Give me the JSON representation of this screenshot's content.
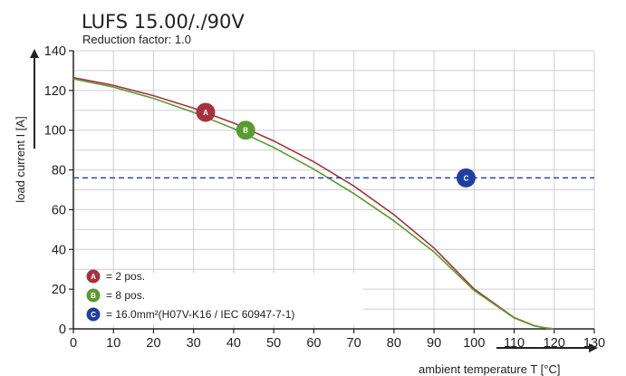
{
  "chart_data": {
    "type": "line",
    "title": "LUFS 15.00/./90V",
    "subtitle": "Reduction factor: 1.0",
    "xlabel": "ambient temperature T [°C]",
    "ylabel": "load current I [A]",
    "xlim": [
      0,
      130
    ],
    "ylim": [
      0,
      140
    ],
    "xticks": [
      "0",
      "10",
      "20",
      "30",
      "40",
      "50",
      "60",
      "70",
      "80",
      "90",
      "100",
      "110",
      "120",
      "130"
    ],
    "yticks": [
      "0",
      "20",
      "40",
      "60",
      "80",
      "100",
      "120",
      "140"
    ],
    "grid": true,
    "legend_position": "bottom-left",
    "series": [
      {
        "marker": "A",
        "color": "#a3343d",
        "x": [
          0,
          10,
          20,
          30,
          40,
          50,
          60,
          70,
          80,
          90,
          100,
          110,
          115,
          118,
          120
        ],
        "y": [
          126.5,
          122.6,
          117.4,
          111.1,
          103.6,
          94.6,
          84.1,
          71.9,
          57.5,
          40.7,
          20.1,
          5.7,
          1.6,
          0.4,
          0
        ]
      },
      {
        "marker": "B",
        "color": "#5a9a33",
        "x": [
          0,
          10,
          20,
          30,
          40,
          50,
          60,
          70,
          80,
          90,
          100,
          110,
          115,
          118,
          120
        ],
        "y": [
          125.8,
          121.7,
          116.0,
          109.0,
          100.8,
          91.3,
          80.4,
          68.1,
          54.4,
          38.7,
          19.4,
          5.5,
          1.5,
          0.4,
          0
        ]
      },
      {
        "marker": "C",
        "color": "#1f3f9f",
        "style": "dashed",
        "x": [
          0,
          130
        ],
        "y": [
          76,
          76
        ]
      }
    ],
    "markers": [
      {
        "letter": "A",
        "x": 33,
        "y": 109,
        "color": "#a3343d"
      },
      {
        "letter": "B",
        "x": 43,
        "y": 100,
        "color": "#5a9a33"
      },
      {
        "letter": "C",
        "x": 98,
        "y": 76,
        "color": "#1f3f9f"
      }
    ],
    "legend": [
      {
        "letter": "A",
        "text": "= 2 pos.",
        "color": "#a3343d"
      },
      {
        "letter": "B",
        "text": "= 8 pos.",
        "color": "#5a9a33"
      },
      {
        "letter": "C",
        "text": "= 16.0mm²(H07V-K16 / IEC 60947-7-1)",
        "color": "#1f3f9f"
      }
    ]
  }
}
